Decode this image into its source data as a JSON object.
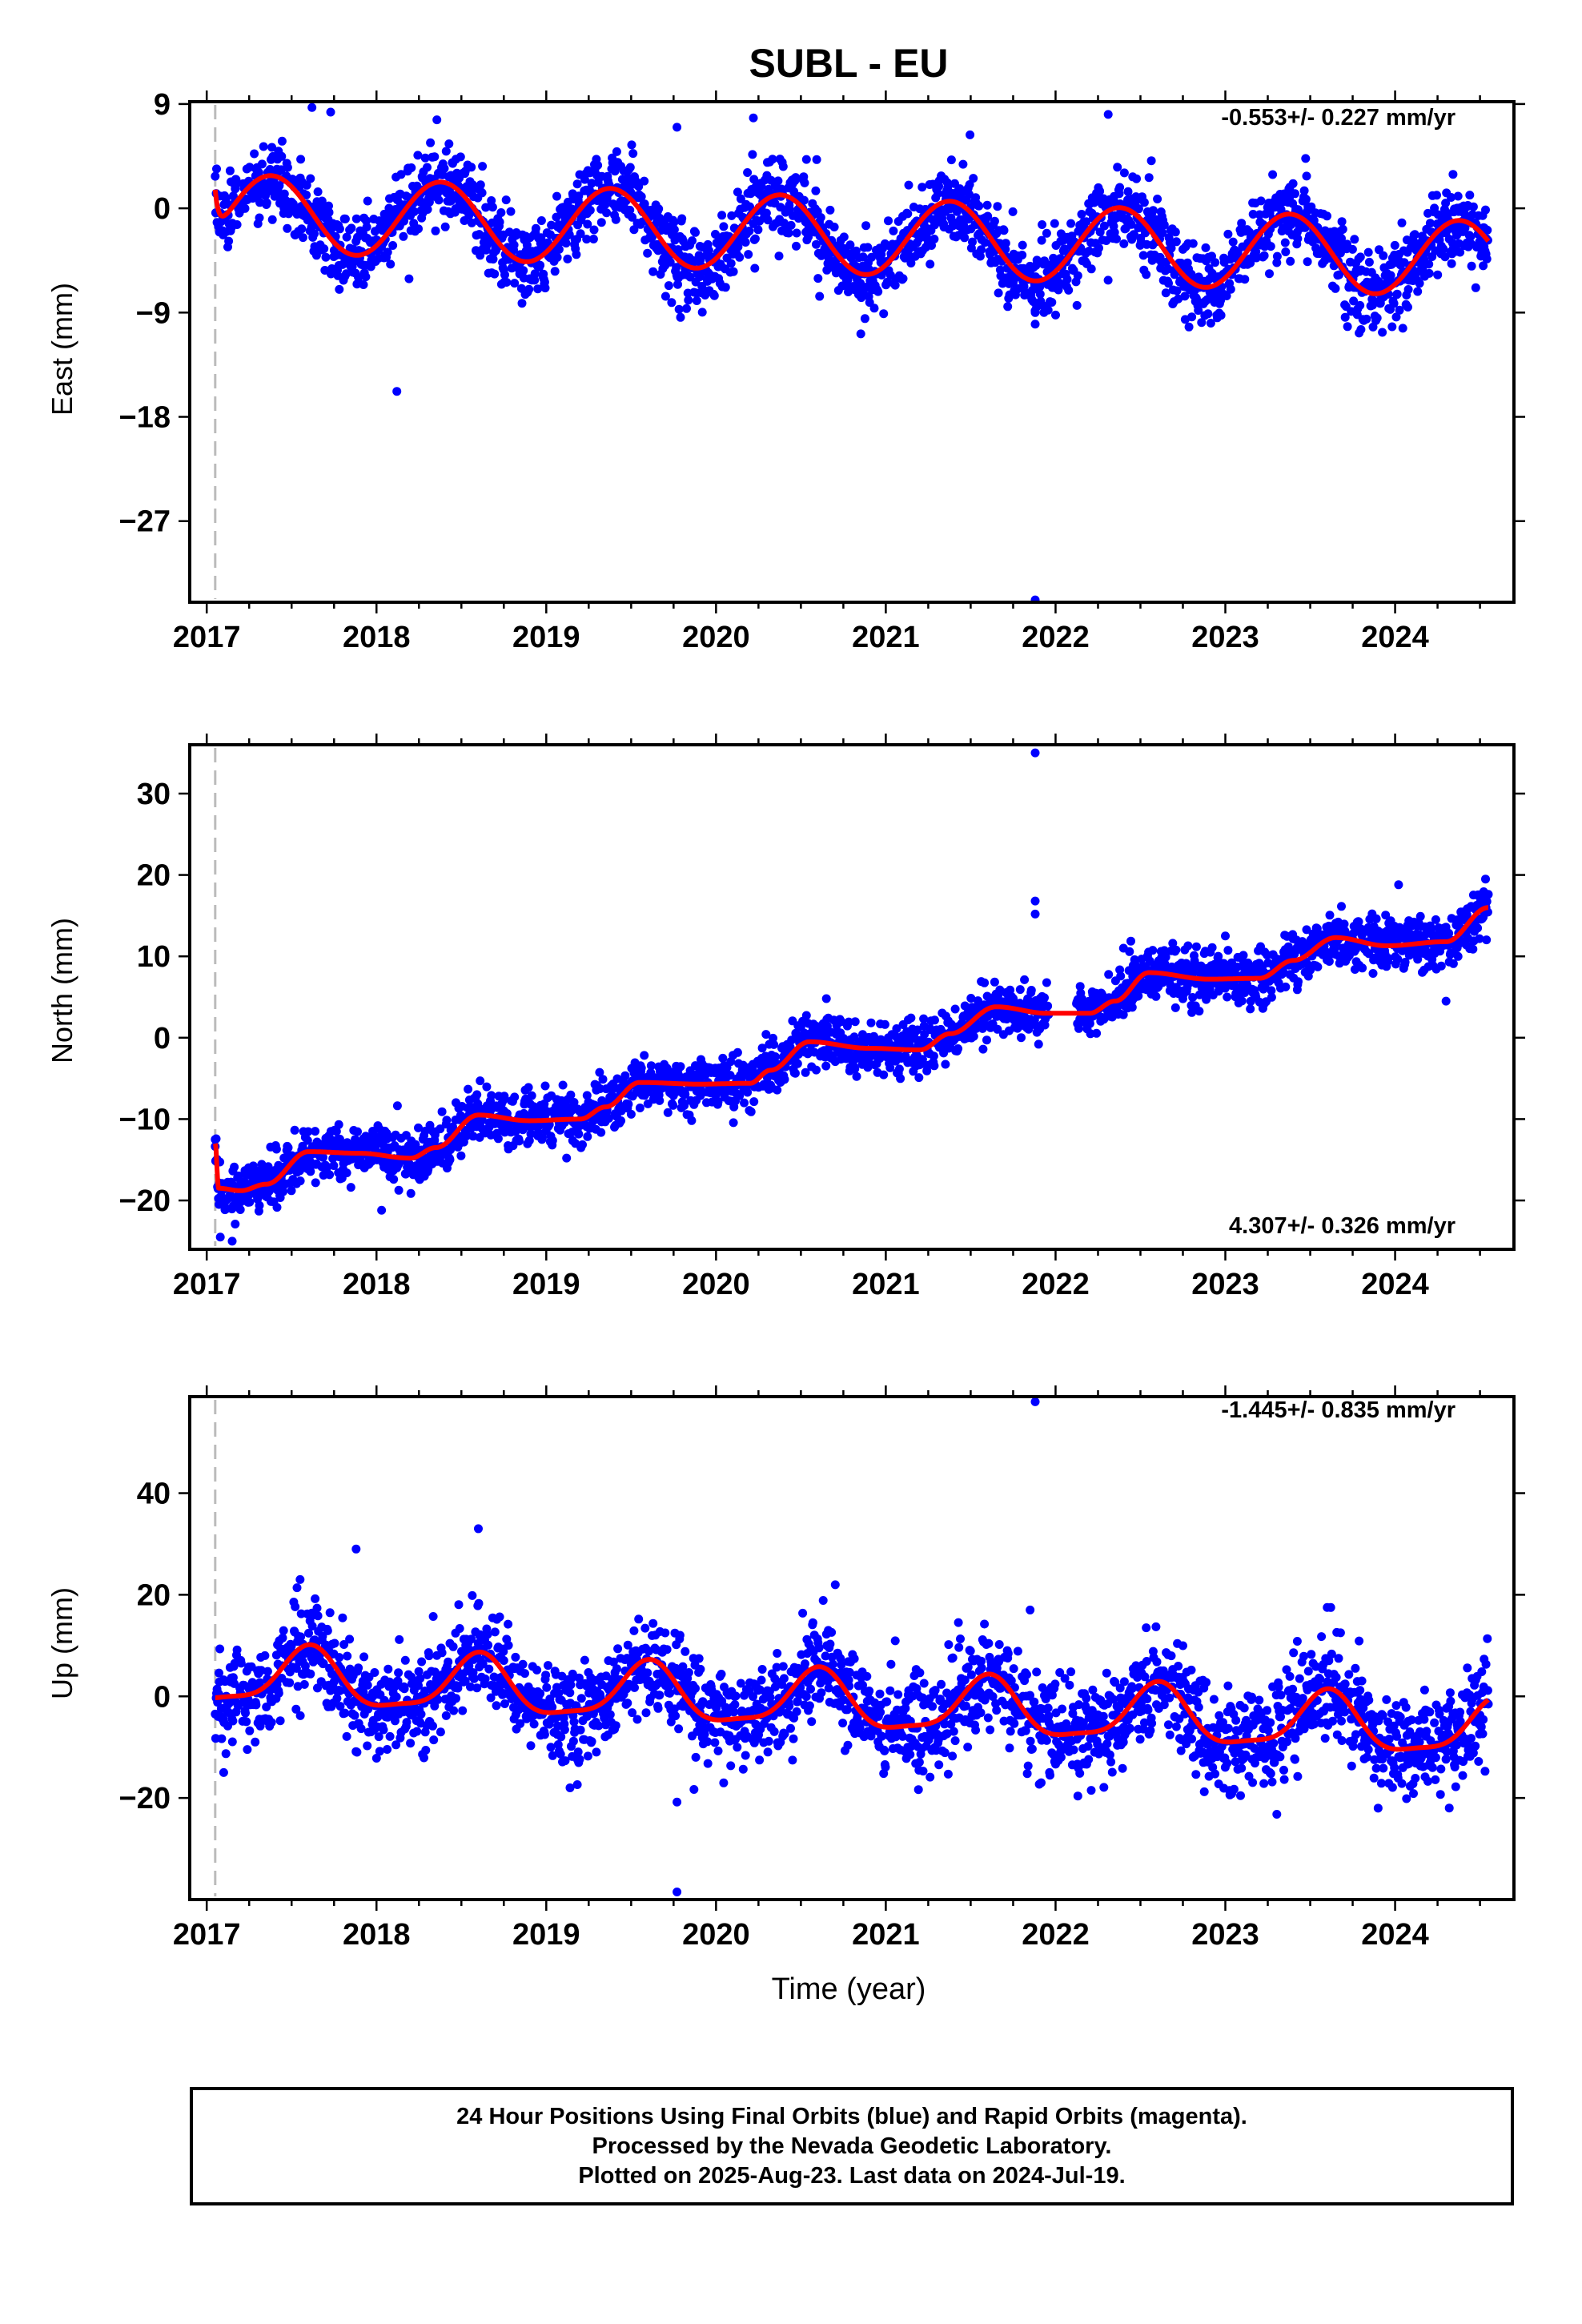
{
  "title": "SUBL - EU",
  "colors": {
    "points": "#0000ff",
    "fit": "#ff0000",
    "marker_line": "#bbbbbb"
  },
  "chart_data": [
    {
      "type": "scatter",
      "panel": "east",
      "ylabel": "East (mm)",
      "xlabel": "",
      "ylim": [
        -34,
        9.2
      ],
      "xlim": [
        2016.9,
        2024.7
      ],
      "yticks": [
        9,
        0,
        -9,
        -18,
        -27
      ],
      "xticks": [
        2017,
        2018,
        2019,
        2020,
        2021,
        2022,
        2023,
        2024
      ],
      "rate_label": "-0.553+/- 0.227 mm/yr",
      "rate_position": "top-right",
      "marker_line_x": 2017.05,
      "fit_model": {
        "t0": 2017.05,
        "end": 2024.55,
        "offset": -0.3,
        "rate": -0.553,
        "annual_amp": 3.3,
        "annual_peak": 0.38,
        "semi_amp": 0,
        "step_start": 3.5,
        "step_decay": 0.02
      },
      "scatter_noise": 1.6,
      "gaps": [],
      "outliers": [
        [
          2018.12,
          -15.8
        ],
        [
          2021.88,
          -33.8
        ],
        [
          2021.88,
          -10.0
        ],
        [
          2021.88,
          -9.0
        ],
        [
          2020.22,
          7.8
        ],
        [
          2019.77,
          7.0
        ],
        [
          2020.61,
          -7.6
        ],
        [
          2022.65,
          -7.3
        ],
        [
          2017.62,
          8.7
        ],
        [
          2017.73,
          8.3
        ],
        [
          2022.31,
          8.1
        ],
        [
          2018.66,
          -5.6
        ]
      ]
    },
    {
      "type": "scatter",
      "panel": "north",
      "ylabel": "North (mm)",
      "xlabel": "",
      "ylim": [
        -26,
        36
      ],
      "xlim": [
        2016.9,
        2024.7
      ],
      "yticks": [
        30,
        20,
        10,
        0,
        -10,
        -20
      ],
      "xticks": [
        2017,
        2018,
        2019,
        2020,
        2021,
        2022,
        2023,
        2024
      ],
      "rate_label": "4.307+/- 0.326 mm/yr",
      "rate_position": "bottom-right",
      "marker_line_x": 2017.05,
      "fit_points": [
        [
          2017.05,
          -13
        ],
        [
          2017.07,
          -18.5
        ],
        [
          2017.2,
          -18.8
        ],
        [
          2017.35,
          -18.0
        ],
        [
          2017.6,
          -14.0
        ],
        [
          2017.9,
          -14.2
        ],
        [
          2018.2,
          -14.8
        ],
        [
          2018.35,
          -13.5
        ],
        [
          2018.6,
          -9.5
        ],
        [
          2018.9,
          -10.2
        ],
        [
          2019.2,
          -10.0
        ],
        [
          2019.35,
          -8.5
        ],
        [
          2019.55,
          -5.5
        ],
        [
          2019.9,
          -5.7
        ],
        [
          2020.2,
          -5.6
        ],
        [
          2020.32,
          -4.0
        ],
        [
          2020.55,
          -0.5
        ],
        [
          2020.9,
          -1.3
        ],
        [
          2021.2,
          -1.5
        ],
        [
          2021.38,
          0.5
        ],
        [
          2021.65,
          3.8
        ],
        [
          2021.95,
          3.0
        ],
        [
          2022.2,
          3.0
        ],
        [
          2022.35,
          4.5
        ],
        [
          2022.55,
          8.0
        ],
        [
          2022.9,
          7.2
        ],
        [
          2023.2,
          7.3
        ],
        [
          2023.4,
          9.5
        ],
        [
          2023.65,
          12.3
        ],
        [
          2023.95,
          11.3
        ],
        [
          2024.3,
          11.8
        ],
        [
          2024.55,
          16.0
        ]
      ],
      "scatter_noise": 1.6,
      "gaps": [
        [
          2021.96,
          2022.12
        ]
      ],
      "outliers": [
        [
          2021.88,
          35.0
        ],
        [
          2021.88,
          16.8
        ],
        [
          2021.88,
          15.2
        ],
        [
          2017.15,
          -25.0
        ],
        [
          2017.08,
          -24.5
        ],
        [
          2018.03,
          -21.2
        ],
        [
          2022.4,
          11.0
        ],
        [
          2023.0,
          12.5
        ],
        [
          2024.3,
          4.5
        ],
        [
          2020.65,
          4.8
        ],
        [
          2021.9,
          -0.8
        ],
        [
          2017.05,
          -12.5
        ]
      ]
    },
    {
      "type": "scatter",
      "panel": "up",
      "ylabel": "Up (mm)",
      "xlabel": "Time (year)",
      "ylim": [
        -40,
        59
      ],
      "xlim": [
        2016.9,
        2024.7
      ],
      "yticks": [
        40,
        20,
        0,
        -20
      ],
      "xticks": [
        2017,
        2018,
        2019,
        2020,
        2021,
        2022,
        2023,
        2024
      ],
      "rate_label": "-1.445+/- 0.835 mm/yr",
      "rate_position": "top-right",
      "marker_line_x": 2017.05,
      "fit_model": {
        "t0": 2017.05,
        "end": 2024.55,
        "offset": 4.0,
        "rate": -1.445,
        "annual_amp": 5.5,
        "annual_peak": 0.6,
        "semi_amp": 1.5,
        "semi_peak": 0.62,
        "step_start": 0,
        "step_decay": 0.02
      },
      "scatter_noise": 4.5,
      "gaps": [],
      "outliers": [
        [
          2021.88,
          58.0
        ],
        [
          2018.6,
          33.0
        ],
        [
          2017.88,
          29.0
        ],
        [
          2017.55,
          23.0
        ],
        [
          2019.14,
          -18.0
        ],
        [
          2019.77,
          -20.8
        ],
        [
          2019.77,
          -38.5
        ],
        [
          2021.85,
          17.0
        ],
        [
          2023.6,
          17.5
        ],
        [
          2017.1,
          -15.0
        ],
        [
          2023.9,
          -22.0
        ],
        [
          2022.21,
          -18.5
        ]
      ]
    }
  ],
  "caption": {
    "line1": "24 Hour Positions Using Final Orbits (blue) and Rapid Orbits (magenta).",
    "line2": "Processed by the Nevada Geodetic Laboratory.",
    "line3": "Plotted on 2025-Aug-23. Last data on 2024-Jul-19."
  }
}
